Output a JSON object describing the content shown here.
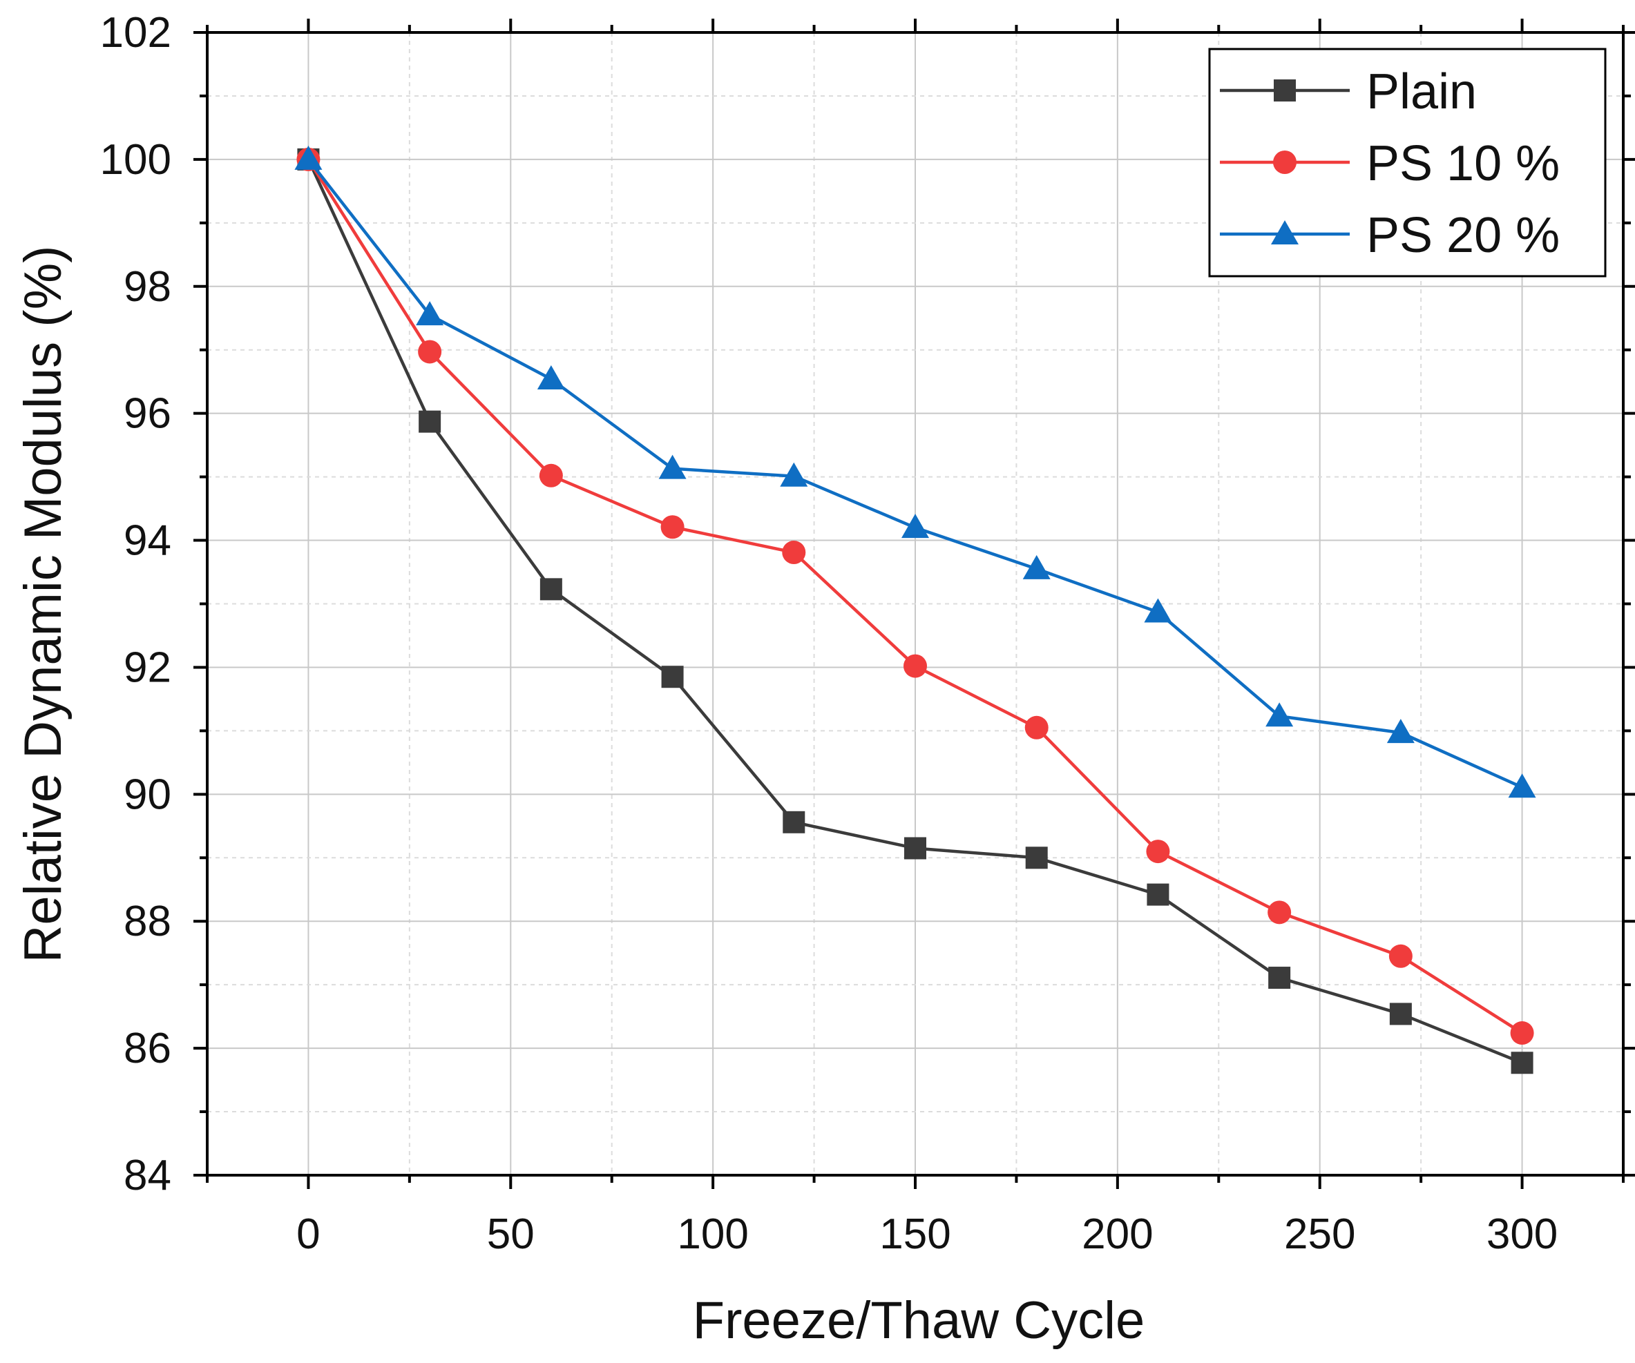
{
  "chart_data": {
    "type": "line",
    "title": "",
    "xlabel": "Freeze/Thaw Cycle",
    "ylabel": "Relative Dynamic Modulus (%)",
    "xlim": [
      -25,
      325
    ],
    "ylim": [
      84,
      102
    ],
    "x_ticks": [
      0,
      50,
      100,
      150,
      200,
      250,
      300
    ],
    "y_ticks": [
      84,
      86,
      88,
      90,
      92,
      94,
      96,
      98,
      100,
      102
    ],
    "x_tick_labels": [
      "0",
      "50",
      "100",
      "150",
      "200",
      "250",
      "300"
    ],
    "y_tick_labels": [
      "84",
      "86",
      "88",
      "90",
      "92",
      "94",
      "96",
      "98",
      "100",
      "102"
    ],
    "grid": true,
    "legend_position": "top-right",
    "x": [
      0,
      30,
      60,
      90,
      120,
      150,
      180,
      210,
      240,
      270,
      300
    ],
    "series": [
      {
        "name": "Plain",
        "marker": "square",
        "color": "#3b3b3b",
        "values": [
          100,
          95.87,
          93.23,
          91.85,
          89.56,
          89.15,
          89.0,
          88.42,
          87.11,
          86.54,
          85.77
        ]
      },
      {
        "name": "PS 10 %",
        "marker": "circle",
        "color": "#f03c3c",
        "values": [
          100,
          96.97,
          95.02,
          94.21,
          93.81,
          92.02,
          91.05,
          89.1,
          88.14,
          87.45,
          86.24
        ]
      },
      {
        "name": "PS 20 %",
        "marker": "triangle",
        "color": "#0f6ec3",
        "values": [
          100,
          97.55,
          96.54,
          95.13,
          95.01,
          94.2,
          93.55,
          92.87,
          91.23,
          90.97,
          90.11
        ]
      }
    ]
  }
}
